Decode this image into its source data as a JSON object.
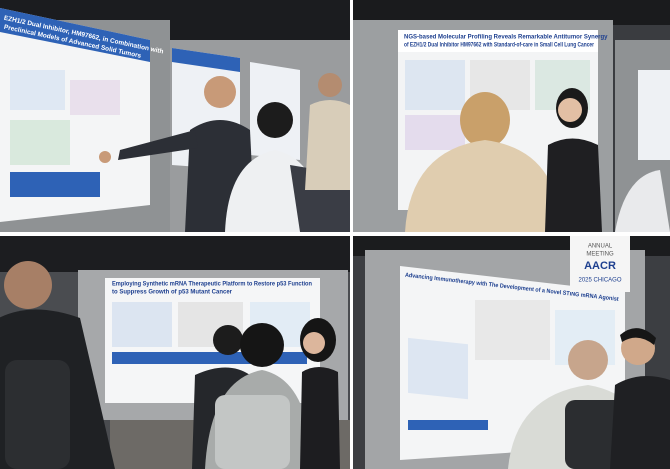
{
  "photos": [
    {
      "poster_title": [
        "EZH1/2 Dual Inhibitor, HM97662, in Combination with",
        "Preclinical Models of Advanced Solid Tumors"
      ]
    },
    {
      "poster_title": [
        "NGS-based Molecular Profiling Reveals Remarkable Antitumor Synergy",
        "of EZH1/2 Dual Inhibitor HM97662 with Standard-of-care in Small Cell Lung Cancer"
      ]
    },
    {
      "poster_title": [
        "Employing Synthetic mRNA Therapeutic Platform to Restore p53 Function",
        "to Suppress Growth of p53 Mutant Cancer"
      ]
    },
    {
      "poster_title": [
        "Advancing Immunotherapy with The Development of a Novel STING mRNA Agonist"
      ]
    }
  ],
  "banner": {
    "lines": [
      "AACR",
      "ANNUAL",
      "MEETING",
      "2025 CHICAGO"
    ]
  }
}
